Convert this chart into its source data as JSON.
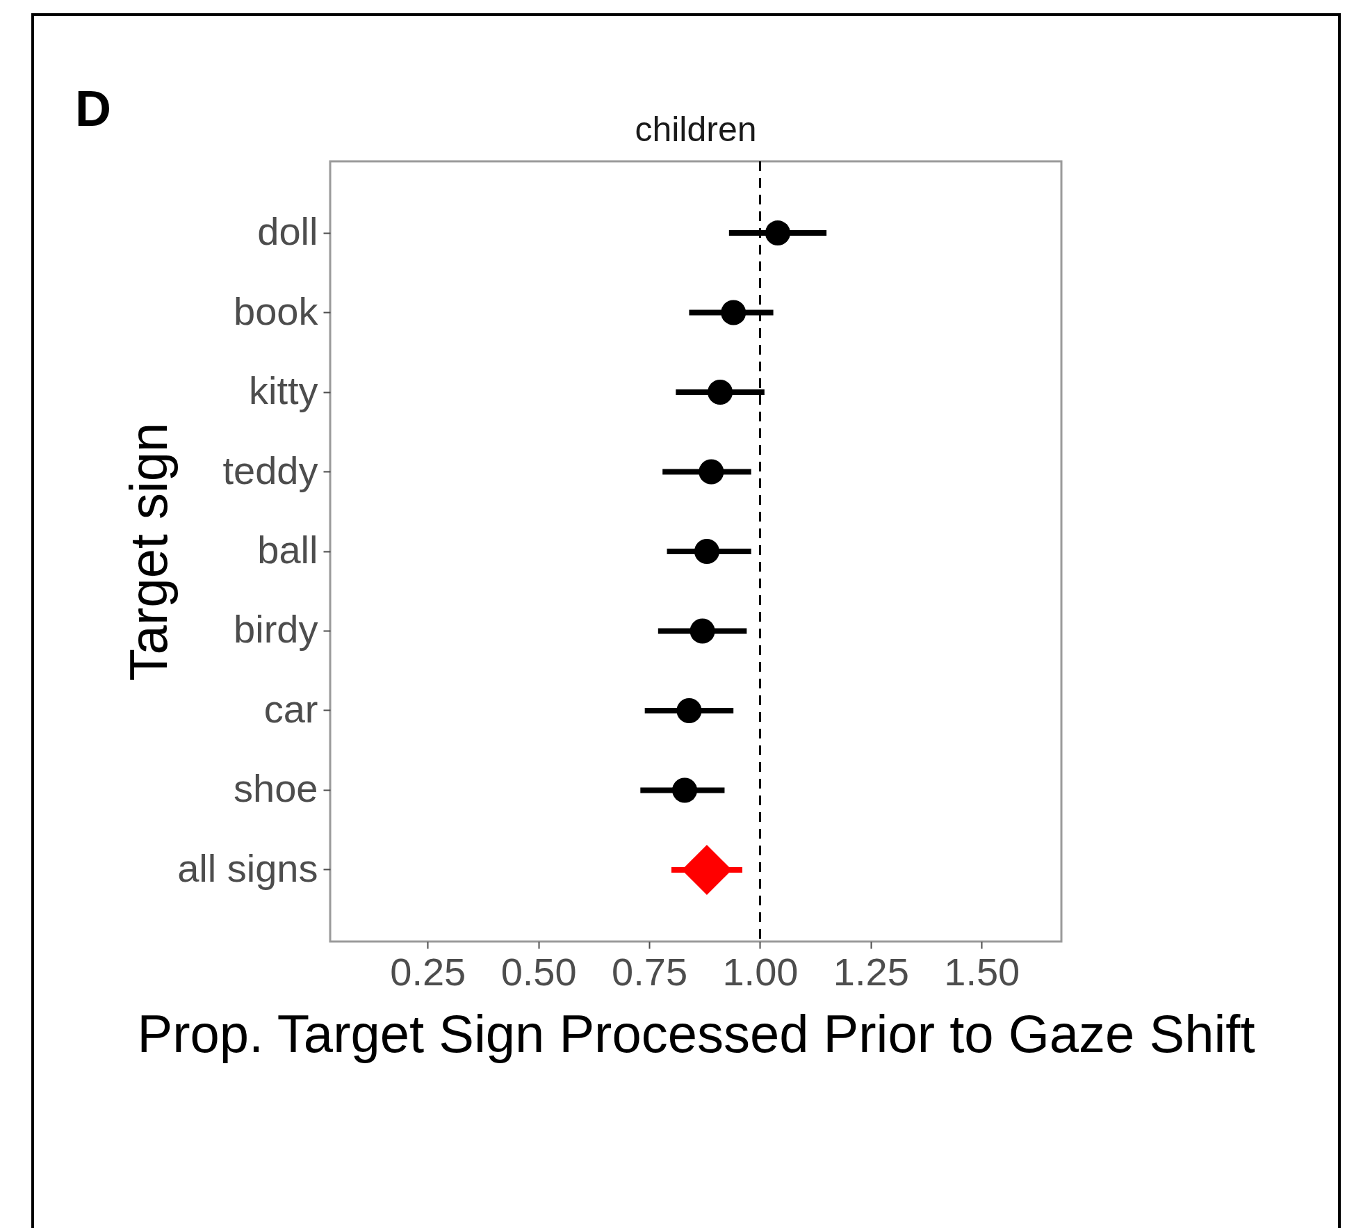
{
  "chart_data": {
    "type": "scatter",
    "title": "children",
    "xlabel": "Prop. Target Sign Processed Prior to Gaze Shift",
    "ylabel": "Target sign",
    "annotations": [
      "D"
    ],
    "orientation": "horizontal",
    "categories": [
      "doll",
      "book",
      "kitty",
      "teddy",
      "ball",
      "birdy",
      "car",
      "shoe",
      "all signs"
    ],
    "series": [
      {
        "color": "#000000",
        "marker": "circle",
        "values": [
          1.04,
          0.94,
          0.91,
          0.89,
          0.88,
          0.87,
          0.84,
          0.83,
          null
        ],
        "errors": [
          [
            0.93,
            1.15
          ],
          [
            0.84,
            1.03
          ],
          [
            0.81,
            1.01
          ],
          [
            0.78,
            0.98
          ],
          [
            0.79,
            0.98
          ],
          [
            0.77,
            0.97
          ],
          [
            0.74,
            0.94
          ],
          [
            0.73,
            0.92
          ],
          null
        ]
      },
      {
        "color": "#ff0000",
        "marker": "diamond",
        "values": [
          null,
          null,
          null,
          null,
          null,
          null,
          null,
          null,
          0.88
        ],
        "errors": [
          null,
          null,
          null,
          null,
          null,
          null,
          null,
          null,
          [
            0.8,
            0.96
          ]
        ]
      }
    ],
    "xlim": [
      0.03,
      1.68
    ],
    "xticks": [
      {
        "value": 0.25,
        "label": "0.25"
      },
      {
        "value": 0.5,
        "label": "0.50"
      },
      {
        "value": 0.75,
        "label": "0.75"
      },
      {
        "value": 1,
        "label": "1.00"
      },
      {
        "value": 1.25,
        "label": "1.25"
      },
      {
        "value": 1.5,
        "label": "1.50"
      }
    ],
    "ref_lines": [
      {
        "axis": "x",
        "value": 1,
        "line_style": "dashed",
        "color": "#000000"
      }
    ],
    "grid": false
  }
}
